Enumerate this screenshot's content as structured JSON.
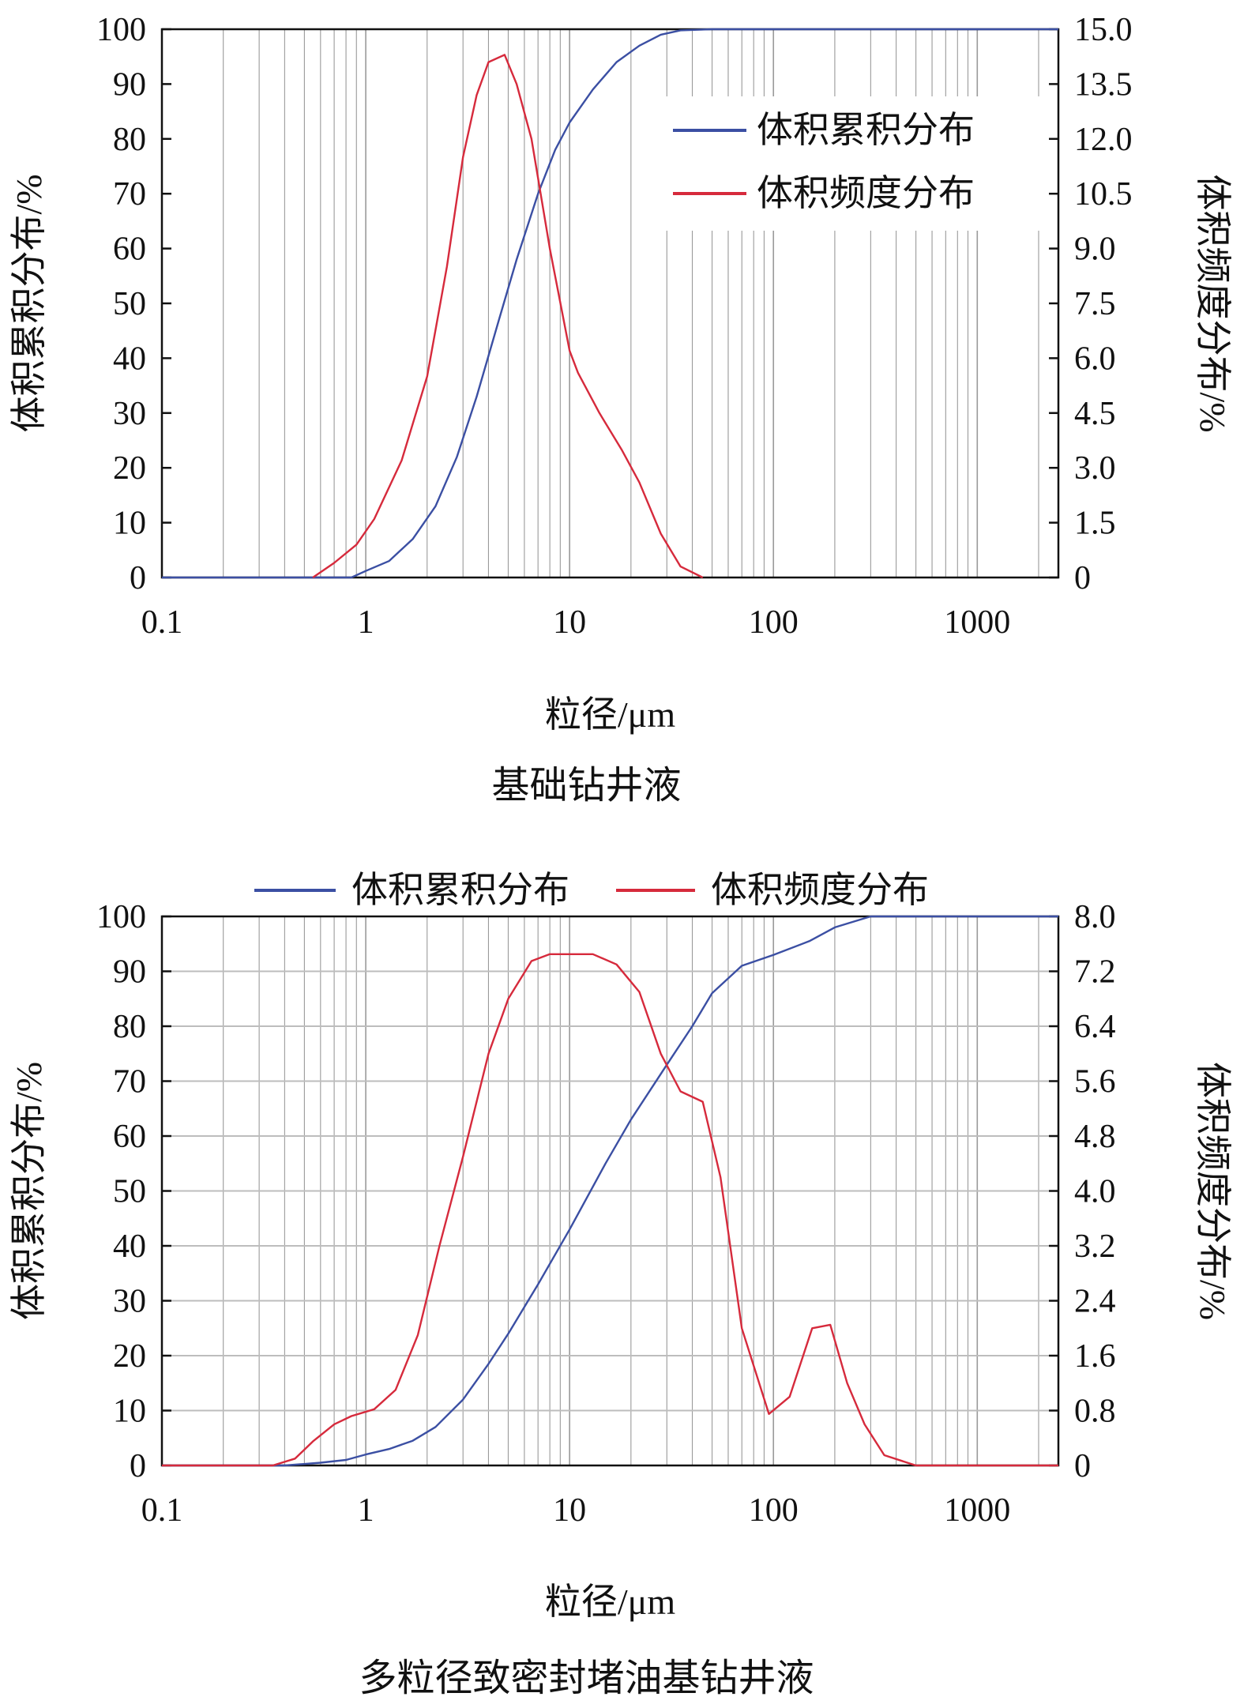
{
  "colors": {
    "cumulative": "#3b4fa3",
    "frequency": "#d62a3c",
    "grid": "#9a9a9a",
    "axis": "#111111"
  },
  "chart_data": [
    {
      "type": "line",
      "title": "基础钻井液",
      "xlabel": "粒径/μm",
      "ylabel_left": "体积累积分布/%",
      "ylabel_right": "体积频度分布/%",
      "x_scale": "log",
      "xlim": [
        0.1,
        2500
      ],
      "x_ticks": [
        "0.1",
        "1",
        "10",
        "100",
        "1000"
      ],
      "ylim_left": [
        0,
        100
      ],
      "y_ticks_left": [
        "0",
        "10",
        "20",
        "30",
        "40",
        "50",
        "60",
        "70",
        "80",
        "90",
        "100"
      ],
      "ylim_right": [
        0,
        15
      ],
      "y_ticks_right": [
        "0",
        "1.5",
        "3.0",
        "4.5",
        "6.0",
        "7.5",
        "9.0",
        "10.5",
        "12.0",
        "13.5",
        "15.0"
      ],
      "grid": "vertical",
      "legend": "top-right",
      "series": [
        {
          "name": "体积累积分布",
          "axis": "left",
          "x": [
            0.1,
            0.85,
            1.0,
            1.3,
            1.7,
            2.2,
            2.8,
            3.5,
            4.5,
            5.5,
            7.0,
            8.5,
            10,
            13,
            17,
            22,
            28,
            35,
            50,
            100,
            1000,
            2500
          ],
          "y": [
            0,
            0,
            1.2,
            3,
            7,
            13,
            22,
            33,
            47,
            58,
            70,
            78,
            83,
            89,
            94,
            97,
            99,
            99.8,
            100,
            100,
            100,
            100
          ]
        },
        {
          "name": "体积频度分布",
          "axis": "right",
          "x": [
            0.55,
            0.7,
            0.9,
            1.1,
            1.5,
            2.0,
            2.5,
            3.0,
            3.5,
            4.0,
            4.8,
            5.5,
            6.5,
            8.0,
            10,
            11,
            14,
            18,
            22,
            28,
            35,
            45
          ],
          "y": [
            0,
            0.4,
            0.9,
            1.6,
            3.2,
            5.5,
            8.5,
            11.5,
            13.2,
            14.1,
            14.3,
            13.5,
            12.0,
            9.0,
            6.2,
            5.6,
            4.5,
            3.5,
            2.6,
            1.2,
            0.3,
            0
          ]
        }
      ]
    },
    {
      "type": "line",
      "title": "多粒径致密封堵油基钻井液",
      "xlabel": "粒径/μm",
      "ylabel_left": "体积累积分布/%",
      "ylabel_right": "体积频度分布/%",
      "x_scale": "log",
      "xlim": [
        0.1,
        2500
      ],
      "x_ticks": [
        "0.1",
        "1",
        "10",
        "100",
        "1000"
      ],
      "ylim_left": [
        0,
        100
      ],
      "y_ticks_left": [
        "0",
        "10",
        "20",
        "30",
        "40",
        "50",
        "60",
        "70",
        "80",
        "90",
        "100"
      ],
      "ylim_right": [
        0,
        8
      ],
      "y_ticks_right": [
        "0",
        "0.8",
        "1.6",
        "2.4",
        "3.2",
        "4.0",
        "4.8",
        "5.6",
        "6.4",
        "7.2",
        "8.0"
      ],
      "grid": "both",
      "legend": "top",
      "series": [
        {
          "name": "体积累积分布",
          "axis": "left",
          "x": [
            0.1,
            0.4,
            0.6,
            0.8,
            1.0,
            1.3,
            1.7,
            2.2,
            3.0,
            4.0,
            5.0,
            7.0,
            10,
            15,
            20,
            30,
            40,
            50,
            70,
            100,
            150,
            200,
            300,
            500,
            1000,
            2500
          ],
          "y": [
            0,
            0,
            0.5,
            1,
            2,
            3,
            4.5,
            7,
            12,
            18.5,
            24,
            33,
            43,
            55,
            63,
            73,
            80,
            86,
            91,
            93,
            95.5,
            98,
            100,
            100,
            100,
            100
          ]
        },
        {
          "name": "体积频度分布",
          "axis": "right",
          "x": [
            0.1,
            0.35,
            0.45,
            0.55,
            0.7,
            0.85,
            1.1,
            1.4,
            1.8,
            2.3,
            3.0,
            4.0,
            5.0,
            6.5,
            8.0,
            10,
            13,
            17,
            22,
            28,
            35,
            45,
            55,
            70,
            95,
            120,
            155,
            190,
            230,
            280,
            350,
            500,
            1000,
            2500
          ],
          "y": [
            0,
            0,
            0.1,
            0.35,
            0.6,
            0.72,
            0.82,
            1.1,
            1.9,
            3.2,
            4.5,
            6.0,
            6.8,
            7.35,
            7.45,
            7.45,
            7.45,
            7.3,
            6.9,
            6.0,
            5.45,
            5.3,
            4.2,
            2.0,
            0.75,
            1.0,
            2.0,
            2.05,
            1.2,
            0.6,
            0.15,
            0,
            0,
            0
          ]
        }
      ]
    }
  ]
}
